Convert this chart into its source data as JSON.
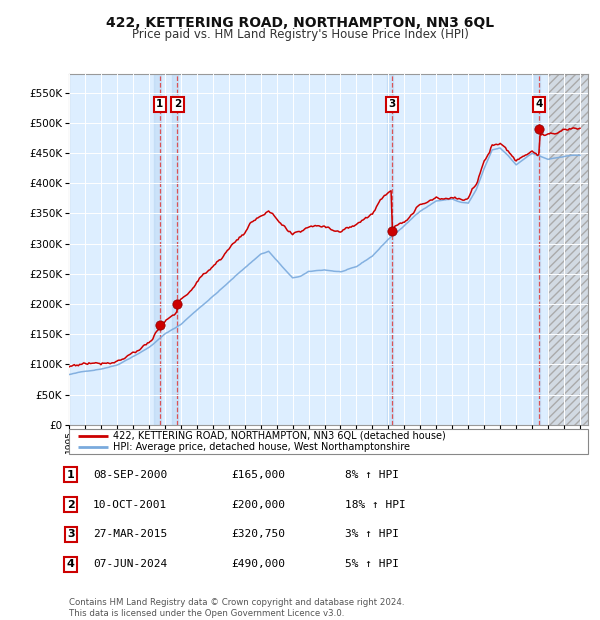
{
  "title": "422, KETTERING ROAD, NORTHAMPTON, NN3 6QL",
  "subtitle": "Price paid vs. HM Land Registry's House Price Index (HPI)",
  "title_fontsize": 10,
  "subtitle_fontsize": 8.5,
  "ytick_values": [
    0,
    50000,
    100000,
    150000,
    200000,
    250000,
    300000,
    350000,
    400000,
    450000,
    500000,
    550000
  ],
  "ylim": [
    0,
    580000
  ],
  "xlim_start": 1995.0,
  "xlim_end": 2027.5,
  "sale_dates": [
    2000.69,
    2001.78,
    2015.24,
    2024.44
  ],
  "sale_prices": [
    165000,
    200000,
    320750,
    490000
  ],
  "sale_labels": [
    "1",
    "2",
    "3",
    "4"
  ],
  "transaction_date_labels": [
    "08-SEP-2000",
    "10-OCT-2001",
    "27-MAR-2015",
    "07-JUN-2024"
  ],
  "transaction_prices_str": [
    "£165,000",
    "£200,000",
    "£320,750",
    "£490,000"
  ],
  "transaction_hpi_str": [
    "8% ↑ HPI",
    "18% ↑ HPI",
    "3% ↑ HPI",
    "5% ↑ HPI"
  ],
  "red_line_color": "#cc0000",
  "blue_line_color": "#7aaadd",
  "background_color": "#ddeeff",
  "dashed_line_color": "#dd4444",
  "grid_color": "#ffffff",
  "legend_line1": "422, KETTERING ROAD, NORTHAMPTON, NN3 6QL (detached house)",
  "legend_line2": "HPI: Average price, detached house, West Northamptonshire",
  "footer_text": "Contains HM Land Registry data © Crown copyright and database right 2024.\nThis data is licensed under the Open Government Licence v3.0.",
  "xtick_years": [
    1995,
    1996,
    1997,
    1998,
    1999,
    2000,
    2001,
    2002,
    2003,
    2004,
    2005,
    2006,
    2007,
    2008,
    2009,
    2010,
    2011,
    2012,
    2013,
    2014,
    2015,
    2016,
    2017,
    2018,
    2019,
    2020,
    2021,
    2022,
    2023,
    2024,
    2025,
    2026,
    2027
  ],
  "future_cutoff": 2025.0,
  "hpi_waypoints_x": [
    1995,
    1996,
    1997,
    1998,
    1999,
    2000,
    2001,
    2002,
    2003,
    2004,
    2005,
    2006,
    2007,
    2007.5,
    2008,
    2008.5,
    2009,
    2009.5,
    2010,
    2011,
    2012,
    2013,
    2014,
    2015,
    2016,
    2017,
    2018,
    2019,
    2019.5,
    2020,
    2020.5,
    2021,
    2021.5,
    2022,
    2022.5,
    2023,
    2023.5,
    2024,
    2024.5,
    2025,
    2025.5,
    2026,
    2027
  ],
  "hpi_waypoints_y": [
    83000,
    88000,
    93000,
    100000,
    115000,
    130000,
    152000,
    168000,
    192000,
    215000,
    238000,
    262000,
    285000,
    290000,
    275000,
    260000,
    245000,
    248000,
    255000,
    258000,
    255000,
    262000,
    280000,
    308000,
    330000,
    355000,
    372000,
    375000,
    370000,
    368000,
    390000,
    425000,
    455000,
    458000,
    445000,
    430000,
    440000,
    450000,
    445000,
    440000,
    442000,
    444000,
    446000
  ]
}
